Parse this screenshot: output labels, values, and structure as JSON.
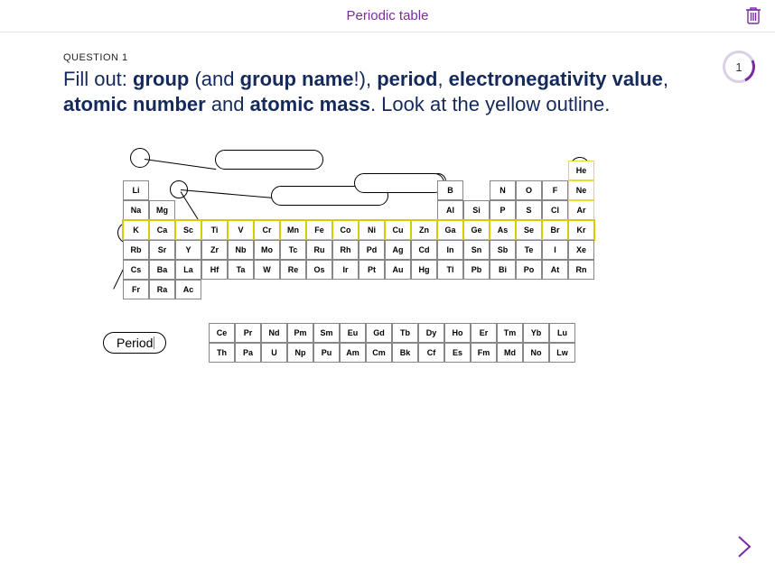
{
  "header": {
    "title": "Periodic table"
  },
  "progress": {
    "current": "1"
  },
  "question": {
    "label": "QUESTION 1",
    "prefix": "Fill out: ",
    "b1": "group",
    "mid1": " (and ",
    "b2": "group name",
    "mid2": "!), ",
    "b3": "period",
    "mid3": ", ",
    "b4": "electronegativity value",
    "mid4": ", ",
    "b5": "atomic number",
    "mid5": " and ",
    "b6": "atomic mass",
    "suffix": ". Look at the yellow outline."
  },
  "periodLabel": "Period",
  "elements": {
    "r1": [
      "",
      "",
      "",
      "",
      "",
      "",
      "",
      "",
      "",
      "",
      "",
      "",
      "",
      "",
      "",
      "",
      "",
      "He"
    ],
    "r2": [
      "Li",
      "",
      "",
      "",
      "",
      "",
      "",
      "",
      "",
      "",
      "",
      "",
      "B",
      "",
      "N",
      "O",
      "F",
      "Ne"
    ],
    "r3": [
      "Na",
      "Mg",
      "",
      "",
      "",
      "",
      "",
      "",
      "",
      "",
      "",
      "",
      "Al",
      "Si",
      "P",
      "S",
      "Cl",
      "Ar"
    ],
    "r4": [
      "K",
      "Ca",
      "Sc",
      "Ti",
      "V",
      "Cr",
      "Mn",
      "Fe",
      "Co",
      "Ni",
      "Cu",
      "Zn",
      "Ga",
      "Ge",
      "As",
      "Se",
      "Br",
      "Kr"
    ],
    "r5": [
      "Rb",
      "Sr",
      "Y",
      "Zr",
      "Nb",
      "Mo",
      "Tc",
      "Ru",
      "Rh",
      "Pd",
      "Ag",
      "Cd",
      "In",
      "Sn",
      "Sb",
      "Te",
      "I",
      "Xe"
    ],
    "r6": [
      "Cs",
      "Ba",
      "La",
      "Hf",
      "Ta",
      "W",
      "Re",
      "Os",
      "Ir",
      "Pt",
      "Au",
      "Hg",
      "Tl",
      "Pb",
      "Bi",
      "Po",
      "At",
      "Rn"
    ],
    "r7": [
      "Fr",
      "Ra",
      "Ac",
      "",
      "",
      "",
      "",
      "",
      "",
      "",
      "",
      "",
      "",
      "",
      "",
      "",
      "",
      ""
    ],
    "l1": [
      "Ce",
      "Pr",
      "Nd",
      "Pm",
      "Sm",
      "Eu",
      "Gd",
      "Tb",
      "Dy",
      "Ho",
      "Er",
      "Tm",
      "Yb",
      "Lu"
    ],
    "l2": [
      "Th",
      "Pa",
      "U",
      "Np",
      "Pu",
      "Am",
      "Cm",
      "Bk",
      "Cf",
      "Es",
      "Fm",
      "Md",
      "No",
      "Lw"
    ]
  },
  "colors": {
    "accent": "#7b2aa7",
    "yellow": "#d6cc00",
    "text": "#152a5a"
  }
}
